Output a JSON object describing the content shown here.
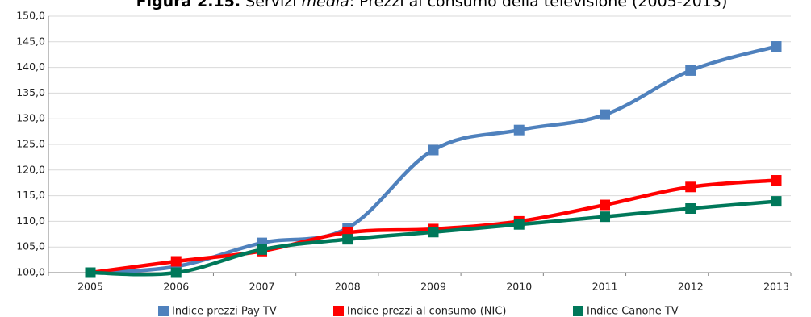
{
  "chart_data": {
    "type": "line",
    "title": "Figura 2.15. Servizi media: Prezzi al consumo della televisione (2005-2013)",
    "title_parts": {
      "prefix": "Figura 2.15.",
      "mid1": " Servizi ",
      "italic": "media",
      "rest": ": Prezzi al consumo della televisione (2005-2013)"
    },
    "x": [
      "2005",
      "2006",
      "2007",
      "2008",
      "2009",
      "2010",
      "2011",
      "2012",
      "2013"
    ],
    "ylim": [
      100,
      150
    ],
    "yticks": [
      "100,0",
      "105,0",
      "110,0",
      "115,0",
      "120,0",
      "125,0",
      "130,0",
      "135,0",
      "140,0",
      "145,0",
      "150,0"
    ],
    "grid": true,
    "legend_position": "bottom",
    "series": [
      {
        "name": "Indice prezzi Pay TV",
        "color": "#4f81bd",
        "values": [
          100.0,
          101.2,
          105.8,
          108.7,
          123.9,
          127.8,
          130.8,
          139.4,
          144.1
        ]
      },
      {
        "name": "Indice prezzi al consumo (NIC)",
        "color": "#ff0000",
        "values": [
          100.0,
          102.2,
          104.2,
          107.8,
          108.5,
          110.0,
          113.2,
          116.7,
          118.0
        ]
      },
      {
        "name": "Indice Canone TV",
        "color": "#00785a",
        "values": [
          100.0,
          100.0,
          104.5,
          106.5,
          107.9,
          109.4,
          110.9,
          112.5,
          113.9
        ]
      }
    ]
  }
}
